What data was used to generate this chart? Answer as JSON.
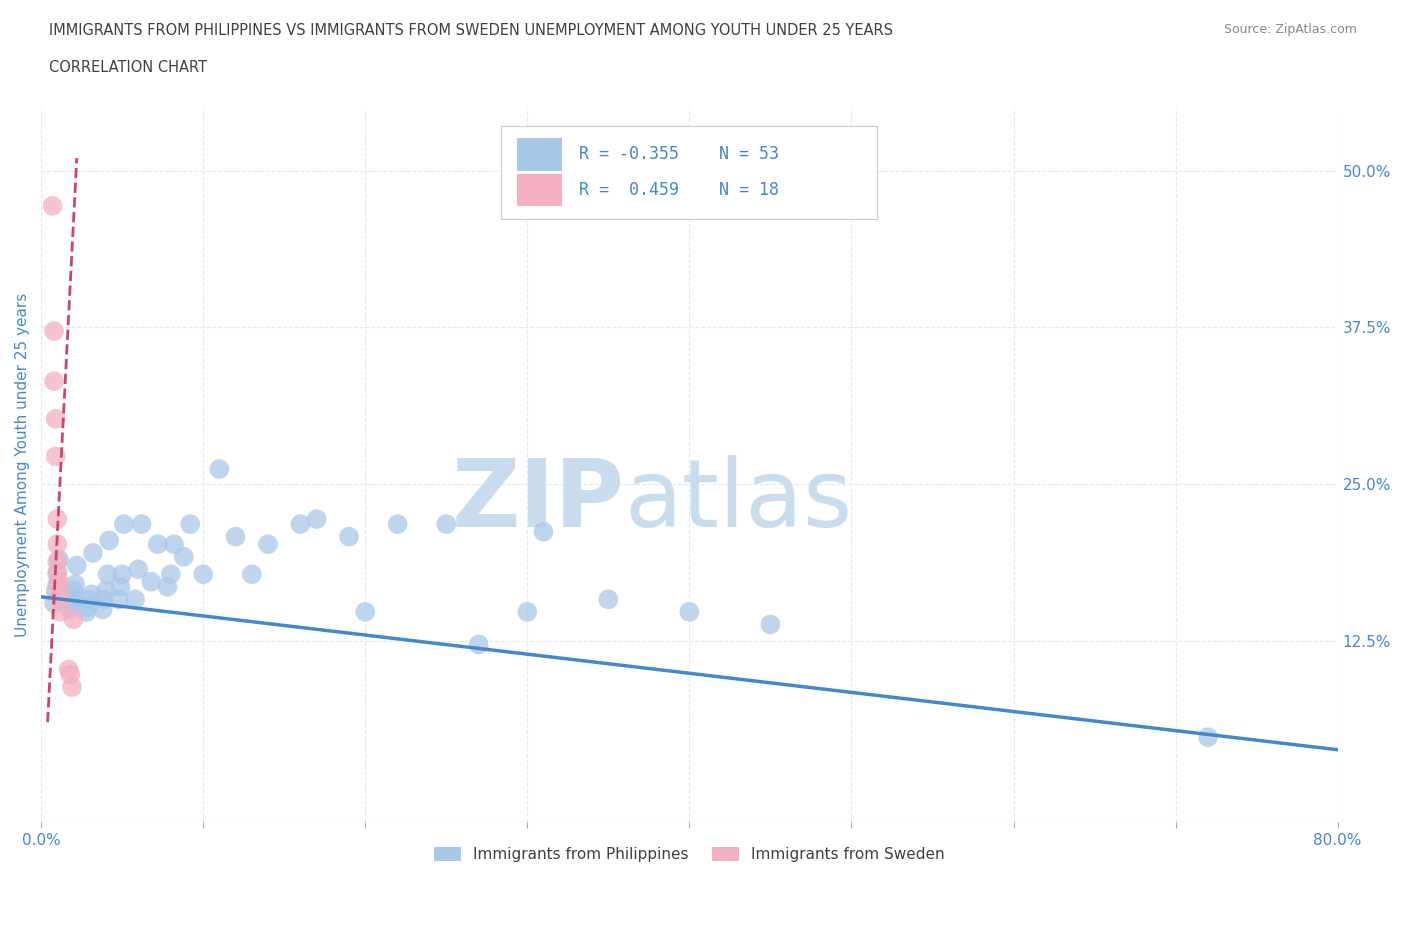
{
  "title_line1": "IMMIGRANTS FROM PHILIPPINES VS IMMIGRANTS FROM SWEDEN UNEMPLOYMENT AMONG YOUTH UNDER 25 YEARS",
  "title_line2": "CORRELATION CHART",
  "source_text": "Source: ZipAtlas.com",
  "ylabel": "Unemployment Among Youth under 25 years",
  "xlim": [
    0,
    0.8
  ],
  "ylim": [
    -0.02,
    0.55
  ],
  "xticks": [
    0.0,
    0.1,
    0.2,
    0.3,
    0.4,
    0.5,
    0.6,
    0.7,
    0.8
  ],
  "yticks_right": [
    0.125,
    0.25,
    0.375,
    0.5
  ],
  "ytick_labels_right": [
    "12.5%",
    "25.0%",
    "37.5%",
    "50.0%"
  ],
  "watermark_zip": "ZIP",
  "watermark_atlas": "atlas",
  "watermark_color": "#c8dced",
  "bg_color": "#ffffff",
  "grid_color": "#e0e8f0",
  "grid_style": "--",
  "blue_color": "#a8c8e8",
  "pink_color": "#f4afc0",
  "blue_line_color": "#4488cc",
  "pink_line_color": "#cc4466",
  "title_color": "#404040",
  "axis_label_color": "#4488cc",
  "r_value_blue": -0.355,
  "n_blue": 53,
  "r_value_pink": 0.459,
  "n_pink": 18,
  "legend_label_blue": "Immigrants from Philippines",
  "legend_label_pink": "Immigrants from Sweden",
  "blue_scatter_x": [
    0.008,
    0.009,
    0.01,
    0.01,
    0.011,
    0.018,
    0.019,
    0.02,
    0.02,
    0.021,
    0.022,
    0.028,
    0.029,
    0.03,
    0.031,
    0.032,
    0.038,
    0.039,
    0.04,
    0.041,
    0.042,
    0.048,
    0.049,
    0.05,
    0.051,
    0.058,
    0.06,
    0.062,
    0.068,
    0.072,
    0.078,
    0.08,
    0.082,
    0.088,
    0.092,
    0.1,
    0.11,
    0.12,
    0.13,
    0.14,
    0.16,
    0.17,
    0.19,
    0.2,
    0.22,
    0.25,
    0.27,
    0.3,
    0.31,
    0.35,
    0.4,
    0.45,
    0.72
  ],
  "blue_scatter_y": [
    0.155,
    0.165,
    0.17,
    0.18,
    0.19,
    0.15,
    0.155,
    0.16,
    0.165,
    0.17,
    0.185,
    0.148,
    0.152,
    0.158,
    0.162,
    0.195,
    0.15,
    0.158,
    0.165,
    0.178,
    0.205,
    0.158,
    0.168,
    0.178,
    0.218,
    0.158,
    0.182,
    0.218,
    0.172,
    0.202,
    0.168,
    0.178,
    0.202,
    0.192,
    0.218,
    0.178,
    0.262,
    0.208,
    0.178,
    0.202,
    0.218,
    0.222,
    0.208,
    0.148,
    0.218,
    0.218,
    0.122,
    0.148,
    0.212,
    0.158,
    0.148,
    0.138,
    0.048
  ],
  "pink_scatter_x": [
    0.007,
    0.008,
    0.008,
    0.009,
    0.009,
    0.01,
    0.01,
    0.01,
    0.01,
    0.011,
    0.011,
    0.011,
    0.012,
    0.012,
    0.017,
    0.018,
    0.019,
    0.02
  ],
  "pink_scatter_y": [
    0.472,
    0.372,
    0.332,
    0.302,
    0.272,
    0.222,
    0.202,
    0.188,
    0.178,
    0.172,
    0.168,
    0.162,
    0.158,
    0.148,
    0.102,
    0.098,
    0.088,
    0.142
  ],
  "blue_trend_x": [
    0.0,
    0.8
  ],
  "blue_trend_y": [
    0.16,
    0.038
  ],
  "pink_trend_x": [
    0.004,
    0.022
  ],
  "pink_trend_y": [
    0.06,
    0.51
  ]
}
